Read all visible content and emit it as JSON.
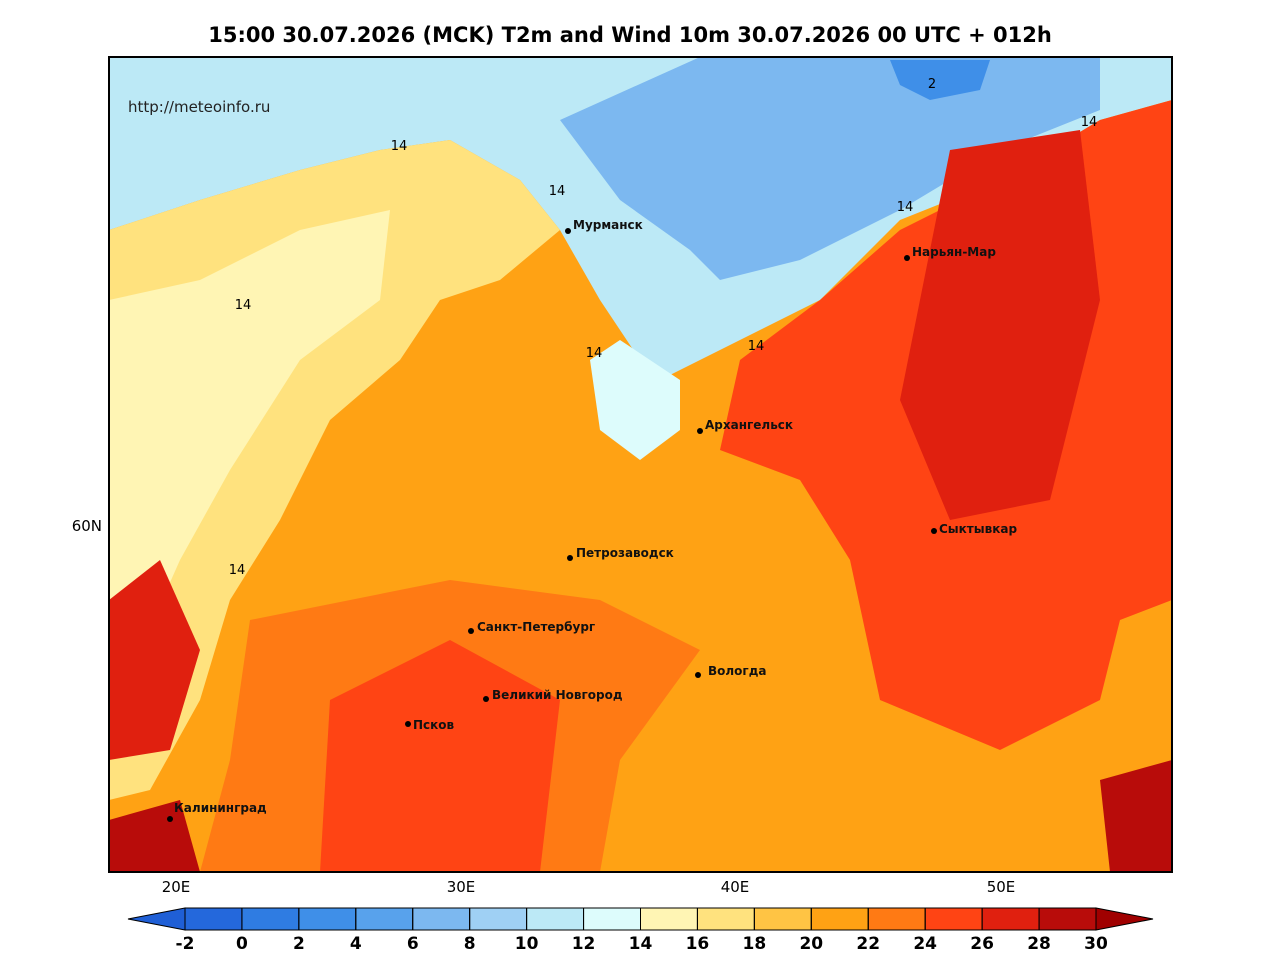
{
  "title": "15:00 30.07.2026 (MCK) T2m and Wind 10m 30.07.2026 00 UTC + 012h",
  "watermark": "http://meteoinfo.ru",
  "map": {
    "lon_labels": [
      "20E",
      "30E",
      "40E",
      "50E"
    ],
    "lat_labels": [
      "60N"
    ],
    "cities": [
      "Мурманск",
      "Нарьян-Мар",
      "Архангельск",
      "Сыктывкар",
      "Петрозаводск",
      "Санкт-Петербург",
      "Вологда",
      "Великий Новгород",
      "Псков",
      "Калининград"
    ],
    "contour_labels": [
      "14",
      "14",
      "14",
      "14",
      "14",
      "14",
      "14",
      "2",
      "14"
    ]
  },
  "colorbar": {
    "ticks": [
      -2,
      0,
      2,
      4,
      6,
      8,
      10,
      12,
      14,
      16,
      18,
      20,
      22,
      24,
      26,
      28,
      30
    ],
    "under_color": "#1f5fd6",
    "over_color": "#a00000",
    "colors": [
      "#2468dc",
      "#2f7ce2",
      "#3f8fe8",
      "#58a2ec",
      "#7cb8f0",
      "#9fd0f4",
      "#bce9f6",
      "#ddfcfc",
      "#fff5b4",
      "#ffe27e",
      "#ffc444",
      "#ffa214",
      "#ff7a14",
      "#ff4414",
      "#e0200f",
      "#b80c0a"
    ]
  }
}
